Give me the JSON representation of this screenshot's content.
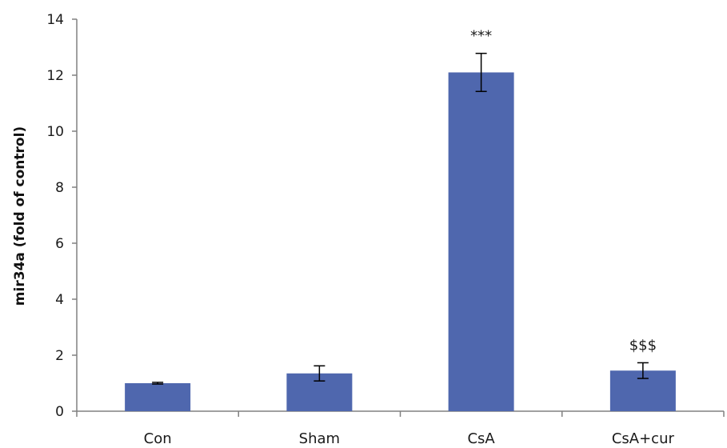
{
  "chart_data": {
    "type": "bar",
    "title": "",
    "xlabel": "",
    "ylabel": "mir34a (fold of control)",
    "categories": [
      "Con",
      "Sham",
      "CsA",
      "CsA+cur"
    ],
    "values": [
      1.0,
      1.35,
      12.1,
      1.45
    ],
    "errors": [
      0.03,
      0.27,
      0.68,
      0.28
    ],
    "annotations": [
      "",
      "",
      "***",
      "$$$"
    ],
    "ylim": [
      0,
      14
    ],
    "yticks": [
      "0",
      "2",
      "4",
      "6",
      "8",
      "10",
      "12",
      "14"
    ],
    "grid": false,
    "legend": "none",
    "bar_color": "#4f67ae",
    "axis_color": "#808080",
    "error_bar_color": "#000000"
  }
}
